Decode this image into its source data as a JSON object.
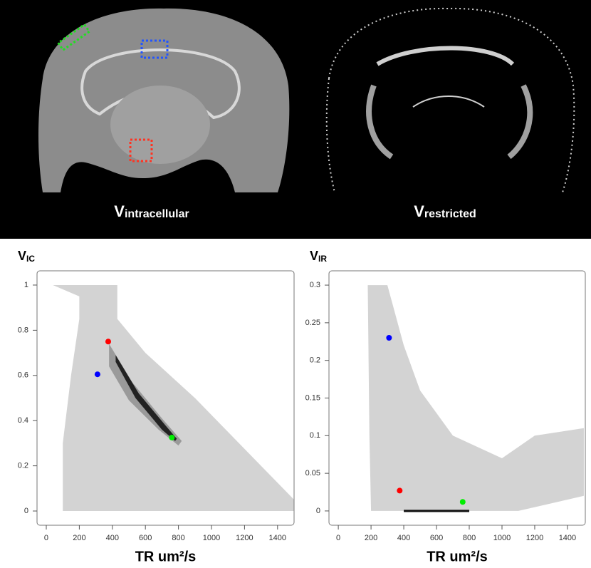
{
  "images": [
    {
      "label": "V",
      "label_sub": "intracellular"
    },
    {
      "label": "V",
      "label_sub": "restricted"
    }
  ],
  "chart_data": [
    {
      "type": "scatter",
      "ylabel": "V",
      "ylabel_sub": "IC",
      "xlabel": "TR um²/s",
      "xlim": [
        -56,
        1500
      ],
      "ylim": [
        -0.063,
        1.063
      ],
      "xticks": [
        0,
        200,
        400,
        600,
        800,
        1000,
        1200,
        1400
      ],
      "yticks": [
        0,
        0.2,
        0.4,
        0.6,
        0.8,
        1
      ],
      "series": [
        {
          "color": "#d3d3d3",
          "shape": "polygon",
          "x": [
            40,
            430,
            430,
            600,
            900,
            1300,
            1500,
            1500,
            100,
            100,
            150,
            200,
            200
          ],
          "values": [
            1,
            1,
            0.85,
            0.7,
            0.5,
            0.2,
            0.05,
            0,
            0,
            0.3,
            0.6,
            0.85,
            0.95
          ]
        },
        {
          "color": "#9a9a9a",
          "shape": "polygon",
          "x": [
            380,
            520,
            700,
            820,
            800,
            680,
            500,
            380
          ],
          "values": [
            0.74,
            0.57,
            0.41,
            0.31,
            0.29,
            0.36,
            0.49,
            0.64
          ]
        },
        {
          "color": "#222222",
          "shape": "polygon",
          "x": [
            420,
            560,
            720,
            790,
            780,
            700,
            540,
            420
          ],
          "values": [
            0.69,
            0.52,
            0.38,
            0.32,
            0.31,
            0.36,
            0.5,
            0.66
          ]
        },
        {
          "color": "#ff0000",
          "shape": "point",
          "x": [
            375
          ],
          "values": [
            0.75
          ]
        },
        {
          "color": "#0000ff",
          "shape": "point",
          "x": [
            310
          ],
          "values": [
            0.605
          ]
        },
        {
          "color": "#00ee00",
          "shape": "point",
          "x": [
            760
          ],
          "values": [
            0.325
          ]
        }
      ]
    },
    {
      "type": "scatter",
      "ylabel": "V",
      "ylabel_sub": "IR",
      "xlabel": "TR um²/s",
      "xlim": [
        -57,
        1509
      ],
      "ylim": [
        -0.019,
        0.319
      ],
      "xticks": [
        0,
        200,
        400,
        600,
        800,
        1000,
        1200,
        1400
      ],
      "yticks": [
        0,
        0.05,
        0.1,
        0.15,
        0.2,
        0.25,
        0.3
      ],
      "series": [
        {
          "color": "#d3d3d3",
          "shape": "polygon",
          "x": [
            180,
            300,
            400,
            500,
            700,
            1000,
            1200,
            1500,
            1500,
            1100,
            200,
            190
          ],
          "values": [
            0.3,
            0.3,
            0.22,
            0.16,
            0.1,
            0.07,
            0.1,
            0.11,
            0.02,
            0,
            0,
            0.1
          ]
        },
        {
          "color": "#111111",
          "shape": "polygon",
          "x": [
            400,
            800,
            800,
            400
          ],
          "values": [
            0.0015,
            0.0015,
            -0.0015,
            -0.0015
          ]
        },
        {
          "color": "#0000ff",
          "shape": "point",
          "x": [
            310
          ],
          "values": [
            0.23
          ]
        },
        {
          "color": "#ff0000",
          "shape": "point",
          "x": [
            375
          ],
          "values": [
            0.027
          ]
        },
        {
          "color": "#00ee00",
          "shape": "point",
          "x": [
            760
          ],
          "values": [
            0.012
          ]
        }
      ]
    }
  ]
}
